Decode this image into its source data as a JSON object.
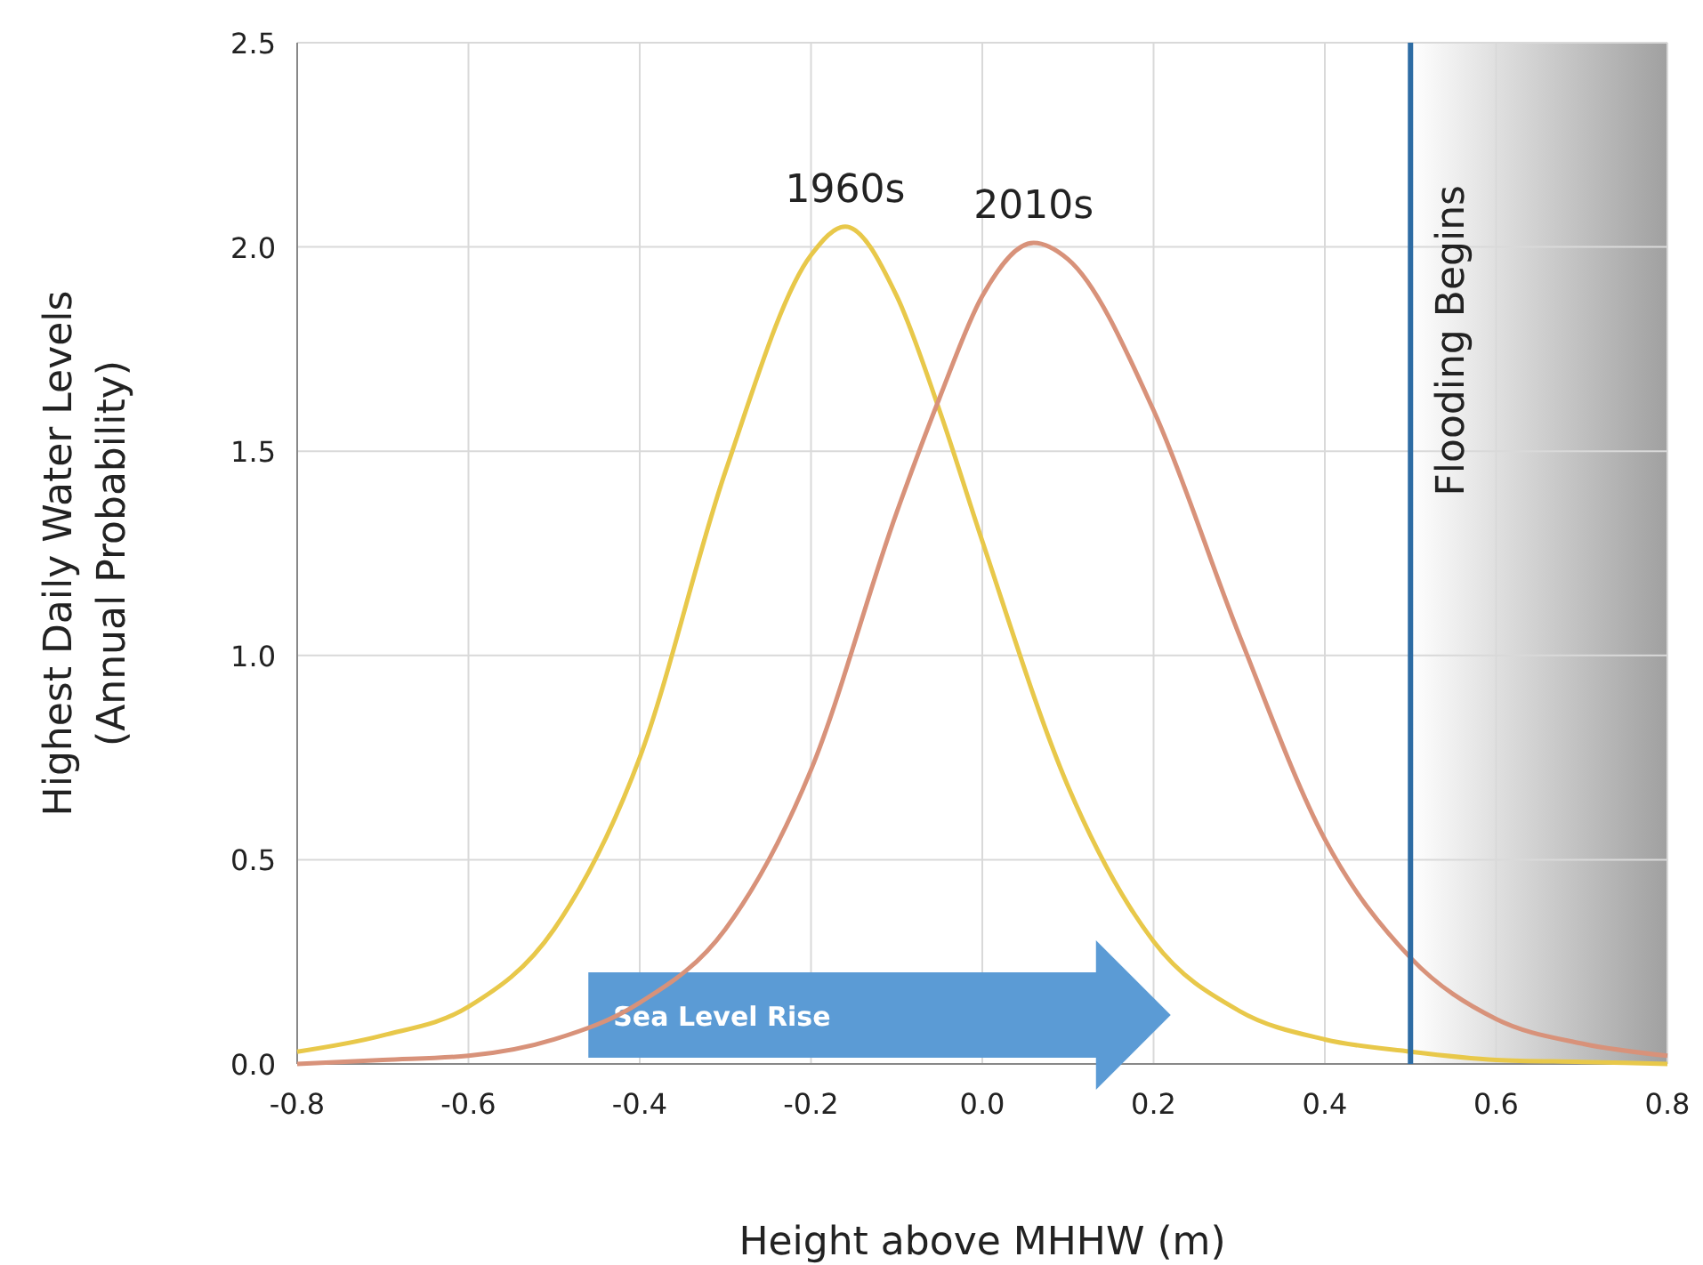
{
  "chart_data": {
    "type": "line",
    "xlabel": "Height above MHHW (m)",
    "ylabel": "Highest Daily Water Levels\n(Annual Probability)",
    "xlim": [
      -0.8,
      0.8
    ],
    "ylim": [
      0,
      2.5
    ],
    "xticks": [
      {
        "value": -0.8,
        "label": "-0.8"
      },
      {
        "value": -0.6,
        "label": "-0.6"
      },
      {
        "value": -0.4,
        "label": "-0.4"
      },
      {
        "value": -0.2,
        "label": "-0.2"
      },
      {
        "value": 0,
        "label": "0.0"
      },
      {
        "value": 0.2,
        "label": "0.2"
      },
      {
        "value": 0.4,
        "label": "0.4"
      },
      {
        "value": 0.6,
        "label": "0.6"
      },
      {
        "value": 0.8,
        "label": "0.8"
      }
    ],
    "yticks": [
      {
        "value": 0,
        "label": "0.0"
      },
      {
        "value": 0.5,
        "label": "0.5"
      },
      {
        "value": 1,
        "label": "1.0"
      },
      {
        "value": 1.5,
        "label": "1.5"
      },
      {
        "value": 2,
        "label": "2.0"
      },
      {
        "value": 2.5,
        "label": "2.5"
      }
    ],
    "grid": true,
    "marker": "none",
    "line_style": "solid",
    "series": [
      {
        "name": "1960s",
        "color": "#e8c84a",
        "x": [
          -0.8,
          -0.7,
          -0.6,
          -0.5,
          -0.4,
          -0.3,
          -0.2,
          -0.16,
          -0.1,
          -0.05,
          0,
          0.1,
          0.2,
          0.3,
          0.4,
          0.5,
          0.6,
          0.7,
          0.8
        ],
        "values": [
          0.03,
          0.07,
          0.14,
          0.33,
          0.75,
          1.45,
          1.98,
          2.05,
          1.88,
          1.6,
          1.28,
          0.68,
          0.3,
          0.13,
          0.06,
          0.03,
          0.01,
          0.005,
          0
        ]
      },
      {
        "name": "2010s",
        "color": "#d8927a",
        "x": [
          -0.8,
          -0.7,
          -0.6,
          -0.5,
          -0.4,
          -0.3,
          -0.2,
          -0.1,
          -0.05,
          0,
          0.06,
          0.1,
          0.2,
          0.3,
          0.4,
          0.5,
          0.6,
          0.7,
          0.8
        ],
        "values": [
          0,
          0.01,
          0.02,
          0.06,
          0.15,
          0.33,
          0.72,
          1.35,
          1.63,
          1.88,
          2.01,
          1.97,
          1.6,
          1.05,
          0.55,
          0.26,
          0.11,
          0.05,
          0.02
        ]
      }
    ],
    "ref_lines": [
      {
        "axis": "x",
        "value": 0.5,
        "label": "Flooding Begins",
        "color": "#2e6ca4"
      }
    ],
    "bands": [
      {
        "axis": "x",
        "from": 0.5,
        "to": 0.8,
        "color": "#a0a0a0"
      }
    ],
    "annotations": [
      "Sea Level Rise"
    ]
  }
}
